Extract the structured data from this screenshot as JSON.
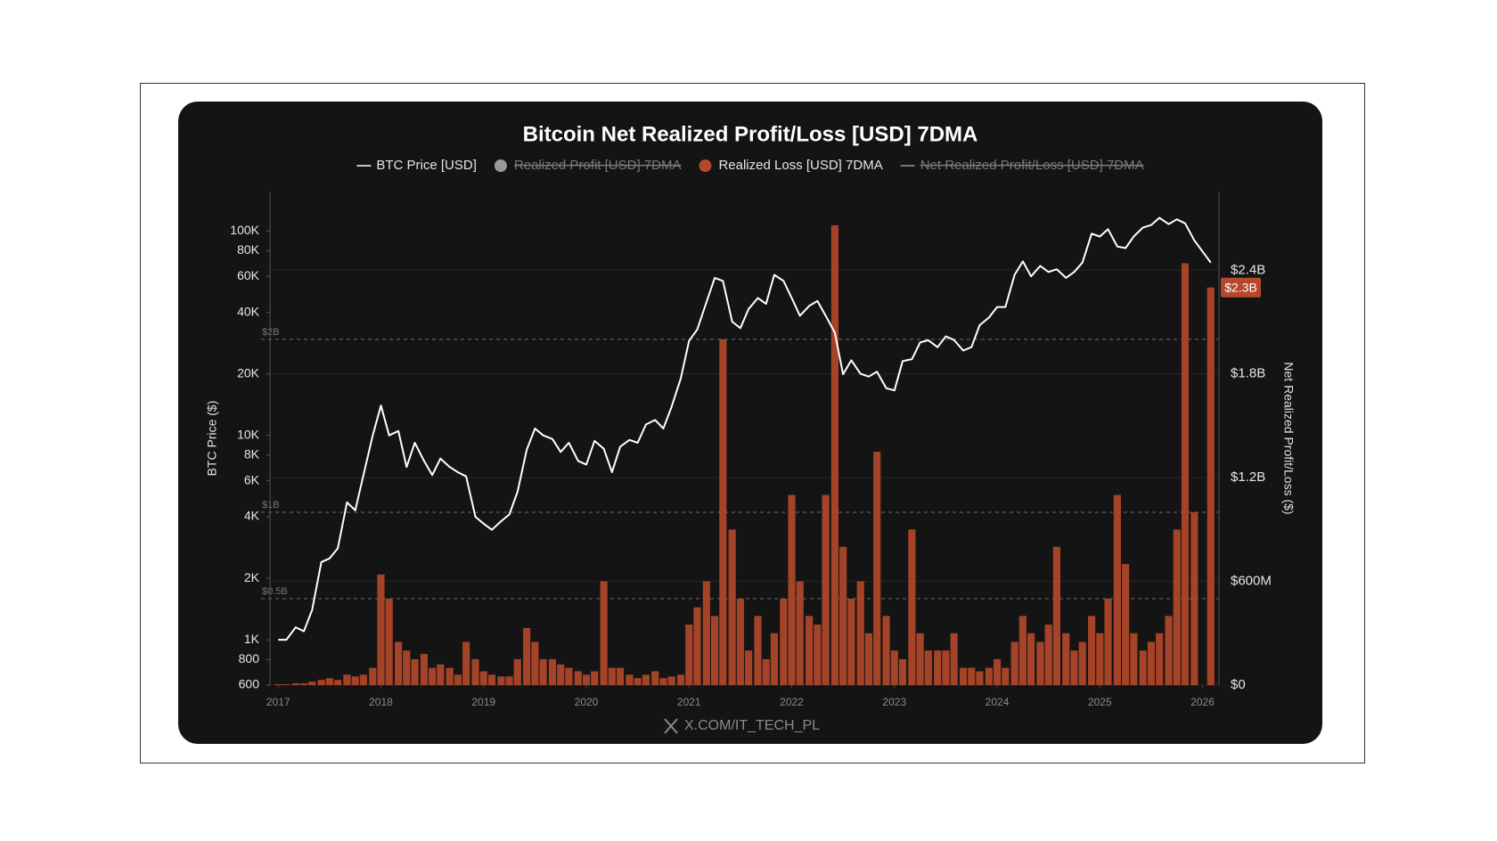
{
  "chart_data": {
    "type": "combo",
    "title": "Bitcoin Net Realized Profit/Loss [USD] 7DMA",
    "ylabel": "BTC Price ($)",
    "y2label": "Net Realized Profit/Loss ($)",
    "watermark": "X.COM/IT_TECH_PL",
    "log_scale_y": true,
    "grid": true,
    "xlim": [
      2016.92,
      2026.16
    ],
    "xticks": [
      2017,
      2018,
      2019,
      2020,
      2021,
      2022,
      2023,
      2024,
      2025,
      2026
    ],
    "ylim": [
      600,
      156000
    ],
    "yticks": [
      600,
      800,
      {
        "value": 1000,
        "label": "1K"
      },
      {
        "value": 2000,
        "label": "2K"
      },
      {
        "value": 4000,
        "label": "4K"
      },
      {
        "value": 6000,
        "label": "6K"
      },
      {
        "value": 8000,
        "label": "8K"
      },
      {
        "value": 10000,
        "label": "10K"
      },
      {
        "value": 20000,
        "label": "20K"
      },
      {
        "value": 40000,
        "label": "40K"
      },
      {
        "value": 60000,
        "label": "60K"
      },
      {
        "value": 80000,
        "label": "80K"
      },
      {
        "value": 100000,
        "label": "100K"
      }
    ],
    "y2lim": [
      0,
      2855000000
    ],
    "y2ticks": [
      {
        "value": 0,
        "label": "$0"
      },
      {
        "value": 600000000,
        "label": "$600M"
      },
      {
        "value": 1200000000,
        "label": "$1.2B"
      },
      {
        "value": 1800000000,
        "label": "$1.8B"
      },
      {
        "value": 2400000000,
        "label": "$2.4B"
      }
    ],
    "reference_lines": [
      {
        "value": 2000000000,
        "label": "$2B"
      },
      {
        "value": 1000000000,
        "label": "$1B"
      },
      {
        "value": 500000000,
        "label": "$0.5B"
      }
    ],
    "current_value": {
      "value": 2300000000,
      "label": "$2.3B",
      "color": "#b5482a"
    },
    "hidden_series": [
      {
        "name": "Realized Profit [USD] 7DMA",
        "color": "#9a9a9a",
        "marker": "circle"
      },
      {
        "name": "Net Realized Profit/Loss [USD] 7DMA",
        "color": "#9a9a9a",
        "marker": "line"
      }
    ],
    "x": [
      2017,
      2017.08,
      2017.17,
      2017.25,
      2017.33,
      2017.42,
      2017.5,
      2017.58,
      2017.67,
      2017.75,
      2017.83,
      2017.92,
      2018,
      2018.08,
      2018.17,
      2018.25,
      2018.33,
      2018.42,
      2018.5,
      2018.58,
      2018.67,
      2018.75,
      2018.83,
      2018.92,
      2019,
      2019.08,
      2019.17,
      2019.25,
      2019.33,
      2019.42,
      2019.5,
      2019.58,
      2019.67,
      2019.75,
      2019.83,
      2019.92,
      2020,
      2020.08,
      2020.17,
      2020.25,
      2020.33,
      2020.42,
      2020.5,
      2020.58,
      2020.67,
      2020.75,
      2020.83,
      2020.92,
      2021,
      2021.08,
      2021.17,
      2021.25,
      2021.33,
      2021.42,
      2021.5,
      2021.58,
      2021.67,
      2021.75,
      2021.83,
      2021.92,
      2022,
      2022.08,
      2022.17,
      2022.25,
      2022.33,
      2022.42,
      2022.5,
      2022.58,
      2022.67,
      2022.75,
      2022.83,
      2022.92,
      2023,
      2023.08,
      2023.17,
      2023.25,
      2023.33,
      2023.42,
      2023.5,
      2023.58,
      2023.67,
      2023.75,
      2023.83,
      2023.92,
      2024,
      2024.08,
      2024.17,
      2024.25,
      2024.33,
      2024.42,
      2024.5,
      2024.58,
      2024.67,
      2024.75,
      2024.83,
      2024.92,
      2025,
      2025.08,
      2025.17,
      2025.25,
      2025.33,
      2025.42,
      2025.5,
      2025.58,
      2025.67,
      2025.75,
      2025.83,
      2025.92,
      2026.08
    ],
    "series": [
      {
        "name": "BTC Price [USD]",
        "type": "line",
        "axis": "y",
        "color": "#ffffff",
        "values": [
          1000,
          1000,
          1150,
          1100,
          1400,
          2400,
          2500,
          2800,
          4700,
          4300,
          6400,
          10000,
          14000,
          10000,
          10500,
          7000,
          9200,
          7500,
          6400,
          7700,
          7000,
          6600,
          6300,
          4000,
          3700,
          3450,
          3800,
          4100,
          5300,
          8500,
          10800,
          10000,
          9600,
          8300,
          9200,
          7500,
          7200,
          9400,
          8600,
          6600,
          8800,
          9500,
          9200,
          11300,
          11900,
          10800,
          13800,
          19000,
          29000,
          33000,
          45000,
          59000,
          57000,
          36000,
          33500,
          41500,
          47000,
          44000,
          61000,
          57000,
          47000,
          38500,
          43000,
          45500,
          38500,
          31800,
          19900,
          23300,
          20000,
          19400,
          20500,
          17000,
          16600,
          23100,
          23600,
          28500,
          29200,
          27000,
          30500,
          29300,
          26000,
          27000,
          34600,
          37700,
          42500,
          42500,
          61000,
          71000,
          60000,
          67500,
          63000,
          65000,
          59000,
          63000,
          70000,
          97000,
          94000,
          102000,
          84000,
          82500,
          94000,
          104000,
          107000,
          116000,
          108000,
          114000,
          109000,
          90000,
          70000
        ]
      },
      {
        "name": "Realized Loss [USD] 7DMA",
        "type": "bar",
        "axis": "y2",
        "color": "#b5482a",
        "values": [
          5000000,
          5000000,
          10000000,
          10000000,
          20000000,
          30000000,
          40000000,
          30000000,
          60000000,
          50000000,
          60000000,
          100000000,
          640000000,
          500000000,
          250000000,
          200000000,
          150000000,
          180000000,
          100000000,
          120000000,
          100000000,
          60000000,
          250000000,
          150000000,
          80000000,
          60000000,
          50000000,
          50000000,
          150000000,
          330000000,
          250000000,
          150000000,
          150000000,
          120000000,
          100000000,
          80000000,
          60000000,
          80000000,
          600000000,
          100000000,
          100000000,
          60000000,
          40000000,
          60000000,
          80000000,
          40000000,
          50000000,
          60000000,
          350000000,
          450000000,
          600000000,
          400000000,
          2000000000,
          900000000,
          500000000,
          200000000,
          400000000,
          150000000,
          300000000,
          500000000,
          1100000000,
          600000000,
          400000000,
          350000000,
          1100000000,
          2660000000,
          800000000,
          500000000,
          600000000,
          300000000,
          1350000000,
          400000000,
          200000000,
          150000000,
          900000000,
          300000000,
          200000000,
          200000000,
          200000000,
          300000000,
          100000000,
          100000000,
          80000000,
          100000000,
          150000000,
          100000000,
          250000000,
          400000000,
          300000000,
          250000000,
          350000000,
          800000000,
          300000000,
          200000000,
          250000000,
          400000000,
          300000000,
          500000000,
          1100000000,
          700000000,
          300000000,
          200000000,
          250000000,
          300000000,
          400000000,
          900000000,
          2440000000,
          1000000000,
          2300000000
        ]
      }
    ]
  }
}
